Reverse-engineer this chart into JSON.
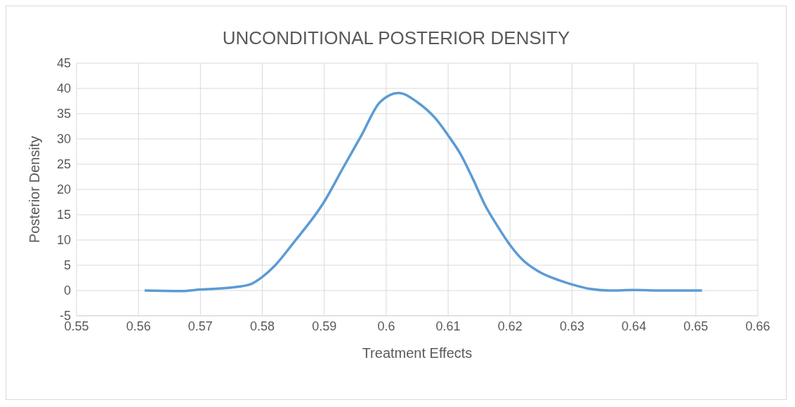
{
  "chart_data": {
    "type": "line",
    "title": "UNCONDITIONAL POSTERIOR DENSITY",
    "xlabel": "Treatment Effects",
    "ylabel": "Posterior Density",
    "x": [
      0.561,
      0.567,
      0.57,
      0.575,
      0.578,
      0.58,
      0.582,
      0.585,
      0.59,
      0.593,
      0.596,
      0.599,
      0.602,
      0.605,
      0.608,
      0.61,
      0.612,
      0.614,
      0.616,
      0.618,
      0.62,
      0.622,
      0.625,
      0.628,
      0.63,
      0.633,
      0.636,
      0.64,
      0.645,
      0.651
    ],
    "series": [
      {
        "color": "#5b9bd5",
        "values": [
          0,
          -0.1,
          0.2,
          0.6,
          1.2,
          2.7,
          4.9,
          9.4,
          17.6,
          24.2,
          30.7,
          37.3,
          39.1,
          37.3,
          34,
          30.7,
          27,
          22.1,
          16.8,
          12.7,
          9,
          6.1,
          3.5,
          2,
          1.2,
          0.3,
          0,
          0.1,
          0,
          0
        ]
      }
    ],
    "xlim": [
      0.55,
      0.66
    ],
    "xticks": [
      0.55,
      0.56,
      0.57,
      0.58,
      0.59,
      0.6,
      0.61,
      0.62,
      0.63,
      0.64,
      0.65,
      0.66
    ],
    "ylim": [
      -5,
      45
    ],
    "yticks": [
      -5,
      0,
      5,
      10,
      15,
      20,
      25,
      30,
      35,
      40,
      45
    ],
    "grid": true,
    "marker": "none",
    "line_style": "solid"
  }
}
